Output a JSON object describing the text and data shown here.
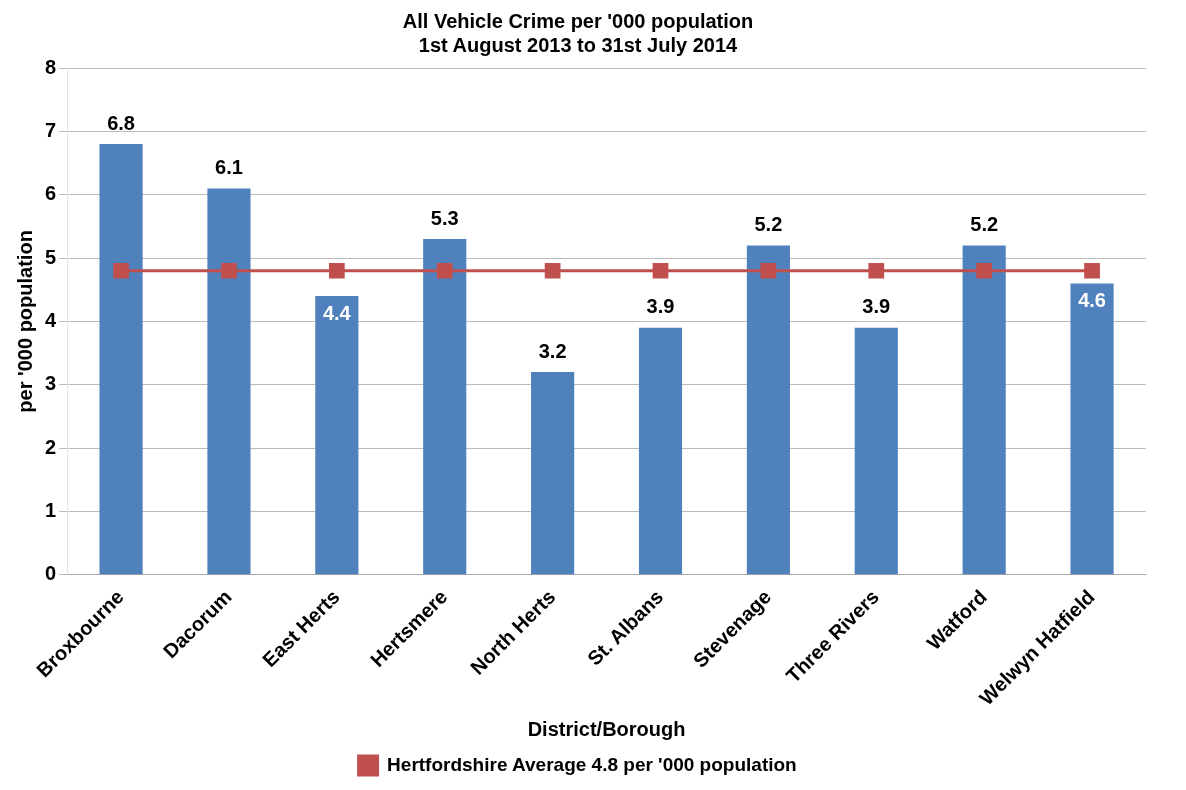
{
  "chart_data": {
    "type": "bar",
    "title": "All Vehicle Crime per '000 population",
    "subtitle": "1st August 2013 to 31st July 2014",
    "xlabel": "District/Borough",
    "ylabel": "per '000 population",
    "categories": [
      "Broxbourne",
      "Dacorum",
      "East Herts",
      "Hertsmere",
      "North Herts",
      "St. Albans",
      "Stevenage",
      "Three Rivers",
      "Watford",
      "Welwyn Hatfield"
    ],
    "series": [
      {
        "color": "#4f81bd",
        "values": [
          6.8,
          6.1,
          4.4,
          5.3,
          3.2,
          3.9,
          5.2,
          3.9,
          5.2,
          4.6
        ],
        "value_labels": [
          "6.8",
          "6.1",
          "4.4",
          "5.3",
          "3.2",
          "3.9",
          "5.2",
          "3.9",
          "5.2",
          "4.6"
        ]
      },
      {
        "type": "line",
        "name": "Hertfordshire Average 4.8 per '000 population",
        "color": "#c0504d",
        "marker": "square",
        "values": [
          4.8,
          4.8,
          4.8,
          4.8,
          4.8,
          4.8,
          4.8,
          4.8,
          4.8,
          4.8
        ]
      }
    ],
    "ylim": [
      0,
      8
    ],
    "yticks": [
      0,
      1,
      2,
      3,
      4,
      5,
      6,
      7,
      8
    ],
    "grid": "y",
    "legend": "bottom"
  }
}
